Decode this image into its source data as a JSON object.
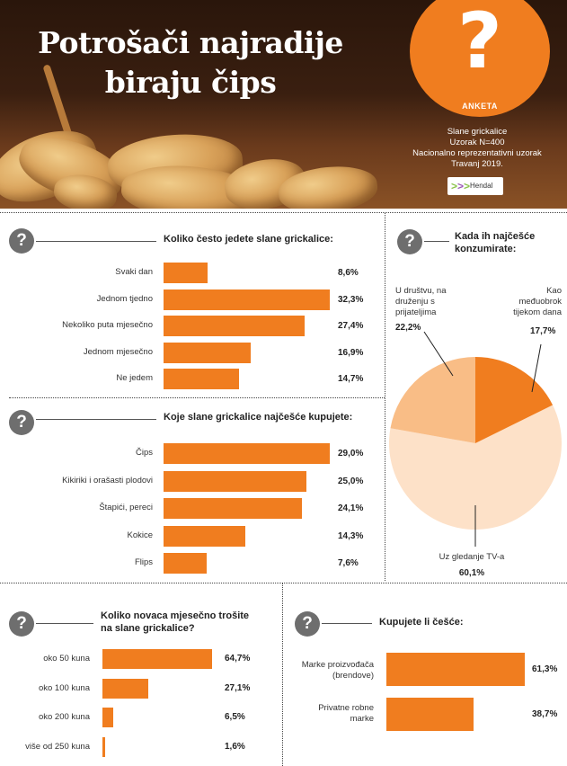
{
  "header": {
    "title_line1": "Potrošači najradije",
    "title_line2": "biraju čips",
    "badge_glyph": "?",
    "badge_label": "ANKETA",
    "survey_line1": "Slane grickalice",
    "survey_line2": "Uzorak N=400",
    "survey_line3": "Nacionalno reprezentativni uzorak",
    "survey_line4": "Travanj 2019.",
    "logo_text": "Hendal",
    "question_glyph": "?",
    "accent_color": "#f07d1f",
    "photo_description_icon": "peanuts-photo"
  },
  "chart_data": [
    {
      "type": "bar",
      "title": "Koliko često jedete slane grickalice:",
      "categories": [
        "Svaki dan",
        "Jednom tjedno",
        "Nekoliko puta mjesečno",
        "Jednom mjesečno",
        "Ne jedem"
      ],
      "values": [
        8.6,
        32.3,
        27.4,
        16.9,
        14.7
      ],
      "labels": [
        "8,6%",
        "32,3%",
        "27,4%",
        "16,9%",
        "14,7%"
      ],
      "unit": "%",
      "color": "#f07d1f"
    },
    {
      "type": "bar",
      "title": "Koje slane grickalice najčešće kupujete:",
      "categories": [
        "Čips",
        "Kikiriki i orašasti plodovi",
        "Štapići, pereci",
        "Kokice",
        "Flips"
      ],
      "values": [
        29.0,
        25.0,
        24.1,
        14.3,
        7.6
      ],
      "labels": [
        "29,0%",
        "25,0%",
        "24,1%",
        "14,3%",
        "7,6%"
      ],
      "unit": "%",
      "color": "#f07d1f"
    },
    {
      "type": "pie",
      "title": "Kada ih najčešće konzumirate:",
      "categories": [
        "U društvu, na druženju s prijateljima",
        "Kao međuobrok tijekom dana",
        "Uz gledanje TV-a"
      ],
      "values": [
        22.2,
        17.7,
        60.1
      ],
      "labels": [
        "22,2%",
        "17,7%",
        "60,1%"
      ],
      "colors": [
        "#f9bd86",
        "#f07d1f",
        "#fde1c8"
      ],
      "unit": "%"
    },
    {
      "type": "bar",
      "title": "Koliko novaca mjesečno trošite na slane grickalice?",
      "categories": [
        "oko 50 kuna",
        "oko 100 kuna",
        "oko 200 kuna",
        "više od 250 kuna"
      ],
      "values": [
        64.7,
        27.1,
        6.5,
        1.6
      ],
      "labels": [
        "64,7%",
        "27,1%",
        "6,5%",
        "1,6%"
      ],
      "unit": "%",
      "color": "#f07d1f"
    },
    {
      "type": "bar",
      "title": "Kupujete li češće:",
      "categories": [
        "Marke proizvođača (brendove)",
        "Privatne robne marke"
      ],
      "values": [
        61.3,
        38.7
      ],
      "labels": [
        "61,3%",
        "38,7%"
      ],
      "unit": "%",
      "color": "#f07d1f"
    }
  ],
  "sections": {
    "s1": {
      "title": "Koliko često jedete slane grickalice:"
    },
    "s2": {
      "title": "Koje slane grickalice najčešće kupujete:"
    },
    "s3": {
      "title_line1": "Kada ih najčešće",
      "title_line2": "konzumirate:",
      "lab0_l1": "U društvu, na",
      "lab0_l2": "druženju s",
      "lab0_l3": "prijateljima",
      "lab1_l1": "Kao",
      "lab1_l2": "međuobrok",
      "lab1_l3": "tijekom dana",
      "lab2_l1": "Uz gledanje TV-a"
    },
    "s4": {
      "title_line1": "Koliko novaca mjesečno trošite",
      "title_line2": "na slane grickalice?"
    },
    "s5": {
      "title": "Kupujete li češće:",
      "lab0_l1": "Marke proizvođača",
      "lab0_l2": "(brendove)",
      "lab1_l1": "Privatne robne",
      "lab1_l2": "marke"
    }
  }
}
